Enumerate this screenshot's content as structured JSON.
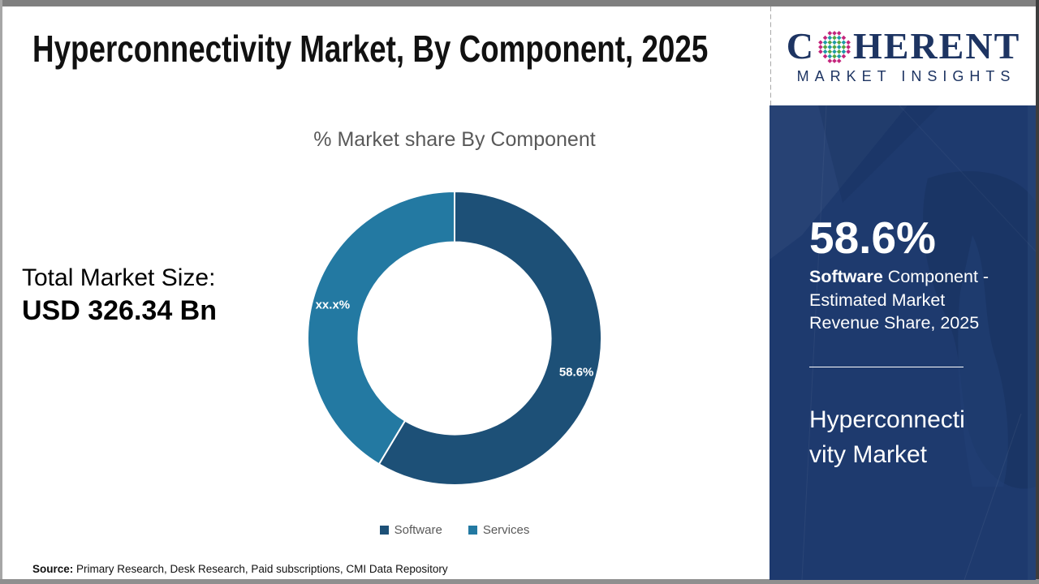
{
  "header": {
    "title": "Hyperconnectivity Market, By Component, 2025"
  },
  "logo": {
    "brand_c": "C",
    "brand_rest": "HERENT",
    "subtitle": "MARKET INSIGHTS",
    "navy": "#1d3462",
    "globe_dot_colors": {
      "teal": "#1e9aa8",
      "green": "#54a63f",
      "magenta": "#c4257c"
    }
  },
  "main": {
    "total_label": "Total Market Size:",
    "total_value": "USD 326.34 Bn",
    "source_label": "Source:",
    "source_text": " Primary Research, Desk Research, Paid subscriptions, CMI Data Repository"
  },
  "chart_data": {
    "type": "pie",
    "subtype": "donut",
    "title": "% Market share By Component",
    "categories": [
      "Software",
      "Services"
    ],
    "values": [
      58.6,
      41.4
    ],
    "slice_labels": [
      "58.6%",
      "xx.x%"
    ],
    "colors": [
      "#1d5077",
      "#2379a2"
    ],
    "inner_radius_ratio": 0.655,
    "start_angle_deg": 0,
    "direction": "clockwise",
    "legend_position": "bottom",
    "notes": "Services share masked as xx.x% in source image"
  },
  "sidebar": {
    "bg_color": "#1e3a6e",
    "stat_value": "58.6%",
    "stat_desc_bold": "Software",
    "stat_desc_rest": " Component - Estimated Market Revenue Share, 2025",
    "market_name": "Hyperconnectivity Market"
  }
}
